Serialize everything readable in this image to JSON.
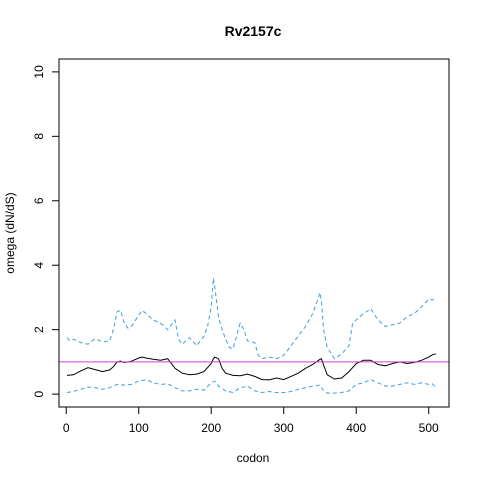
{
  "chart_data": {
    "type": "line",
    "title": "Rv2157c",
    "xlabel": "codon",
    "ylabel": "omega (dN/dS)",
    "xlim": [
      -10,
      528
    ],
    "ylim": [
      -0.4,
      10.4
    ],
    "xticks": [
      0,
      100,
      200,
      300,
      400,
      500
    ],
    "yticks": [
      0,
      2,
      4,
      6,
      8,
      10
    ],
    "grid": false,
    "reference_line": {
      "y": 1.0,
      "color": "#cc44cc"
    },
    "series": [
      {
        "role": "estimate",
        "color": "#000000",
        "dash": "solid",
        "x": [
          1,
          10,
          20,
          30,
          40,
          50,
          60,
          65,
          70,
          75,
          80,
          90,
          100,
          105,
          110,
          120,
          130,
          140,
          150,
          160,
          170,
          180,
          190,
          200,
          203,
          205,
          210,
          215,
          220,
          230,
          240,
          250,
          260,
          270,
          280,
          290,
          300,
          310,
          320,
          330,
          340,
          345,
          350,
          352,
          355,
          360,
          370,
          380,
          390,
          400,
          410,
          420,
          430,
          440,
          450,
          460,
          470,
          480,
          490,
          500,
          505,
          510
        ],
        "y": [
          0.58,
          0.6,
          0.72,
          0.82,
          0.76,
          0.7,
          0.75,
          0.85,
          1.0,
          1.02,
          0.98,
          1.02,
          1.12,
          1.15,
          1.12,
          1.08,
          1.05,
          1.1,
          0.8,
          0.65,
          0.6,
          0.62,
          0.7,
          0.95,
          1.1,
          1.15,
          1.1,
          0.8,
          0.65,
          0.58,
          0.57,
          0.62,
          0.55,
          0.45,
          0.44,
          0.5,
          0.45,
          0.55,
          0.65,
          0.8,
          0.92,
          1.0,
          1.08,
          1.1,
          0.9,
          0.6,
          0.47,
          0.5,
          0.7,
          0.95,
          1.05,
          1.05,
          0.92,
          0.88,
          0.95,
          1.0,
          0.95,
          0.98,
          1.05,
          1.15,
          1.22,
          1.25
        ]
      },
      {
        "role": "upper bound",
        "color": "#3aa0e0",
        "dash": "dashed",
        "x": [
          1,
          5,
          10,
          20,
          30,
          40,
          50,
          60,
          65,
          70,
          75,
          80,
          85,
          90,
          100,
          105,
          110,
          120,
          130,
          140,
          150,
          155,
          160,
          170,
          180,
          190,
          195,
          200,
          203,
          205,
          210,
          215,
          220,
          225,
          230,
          240,
          245,
          250,
          260,
          265,
          270,
          280,
          290,
          300,
          310,
          320,
          330,
          340,
          345,
          350,
          352,
          355,
          360,
          370,
          380,
          390,
          395,
          400,
          410,
          420,
          430,
          440,
          450,
          460,
          470,
          480,
          490,
          500,
          505,
          510
        ],
        "y": [
          1.75,
          1.65,
          1.7,
          1.6,
          1.55,
          1.72,
          1.62,
          1.65,
          2.0,
          2.55,
          2.6,
          2.2,
          2.05,
          2.1,
          2.45,
          2.6,
          2.5,
          2.3,
          2.2,
          2.0,
          2.3,
          1.7,
          1.55,
          1.75,
          1.5,
          1.8,
          2.1,
          2.7,
          3.6,
          3.3,
          2.4,
          2.0,
          1.7,
          1.45,
          1.4,
          2.2,
          2.0,
          1.65,
          1.6,
          1.2,
          1.1,
          1.15,
          1.1,
          1.2,
          1.5,
          1.8,
          2.1,
          2.5,
          2.8,
          3.15,
          2.9,
          2.0,
          1.45,
          1.1,
          1.25,
          1.5,
          2.2,
          2.3,
          2.5,
          2.65,
          2.3,
          2.1,
          2.15,
          2.2,
          2.4,
          2.5,
          2.7,
          2.95,
          2.92,
          2.95
        ]
      },
      {
        "role": "lower bound",
        "color": "#3aa0e0",
        "dash": "dashed",
        "x": [
          1,
          10,
          20,
          30,
          40,
          50,
          60,
          70,
          80,
          90,
          100,
          110,
          120,
          130,
          140,
          150,
          160,
          170,
          180,
          190,
          200,
          205,
          210,
          220,
          230,
          240,
          250,
          260,
          270,
          280,
          290,
          300,
          310,
          320,
          330,
          340,
          350,
          355,
          360,
          370,
          380,
          390,
          400,
          410,
          420,
          430,
          440,
          450,
          460,
          470,
          480,
          490,
          500,
          505,
          510
        ],
        "y": [
          0.05,
          0.08,
          0.15,
          0.22,
          0.2,
          0.15,
          0.2,
          0.3,
          0.28,
          0.3,
          0.4,
          0.45,
          0.35,
          0.3,
          0.32,
          0.2,
          0.1,
          0.1,
          0.15,
          0.12,
          0.35,
          0.4,
          0.25,
          0.1,
          0.05,
          0.2,
          0.25,
          0.1,
          0.05,
          0.08,
          0.05,
          0.05,
          0.08,
          0.15,
          0.2,
          0.25,
          0.28,
          0.1,
          0.03,
          0.03,
          0.05,
          0.1,
          0.3,
          0.35,
          0.45,
          0.35,
          0.25,
          0.25,
          0.3,
          0.35,
          0.3,
          0.35,
          0.3,
          0.32,
          0.2
        ]
      }
    ]
  }
}
